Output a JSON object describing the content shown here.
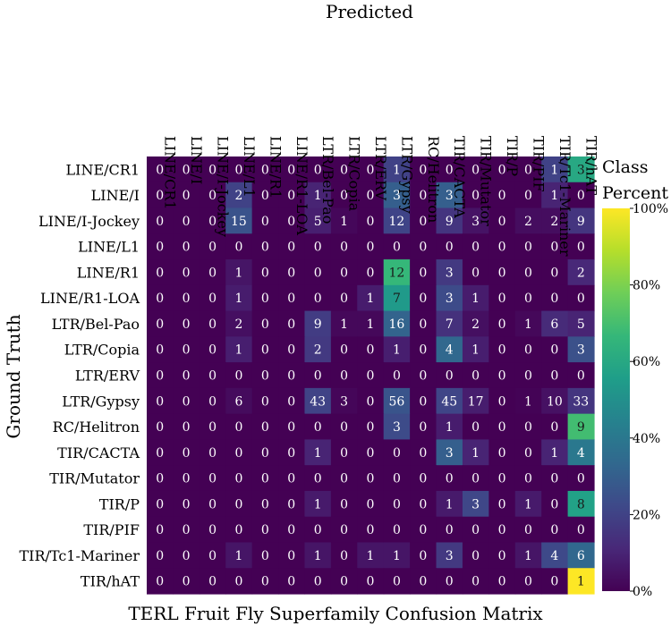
{
  "chart_data": {
    "type": "heatmap",
    "title": "TERL Fruit Fly Superfamily Confusion Matrix",
    "xlabel": "Predicted",
    "ylabel": "Ground Truth",
    "colorbar": {
      "label_line1": "Class",
      "label_line2": "Percent",
      "ticks": [
        "0%",
        "20%",
        "40%",
        "60%",
        "80%",
        "100%"
      ],
      "colormap": "viridis",
      "range": [
        0,
        100
      ]
    },
    "columns": [
      "LINE/CR1",
      "LINE/I",
      "LINE/I-Jockey",
      "LINE/L1",
      "LINE/R1",
      "LINE/R1-LOA",
      "LTR/Bel-Pao",
      "LTR/Copia",
      "LTR/ERV",
      "LTR/Gypsy",
      "RC/Helitron",
      "TIR/CACTA",
      "TIR/Mutator",
      "TIR/P",
      "TIR/PIF",
      "TIR/Tc1-Mariner",
      "TIR/hAT"
    ],
    "rows": [
      "LINE/CR1",
      "LINE/I",
      "LINE/I-Jockey",
      "LINE/L1",
      "LINE/R1",
      "LINE/R1-LOA",
      "LTR/Bel-Pao",
      "LTR/Copia",
      "LTR/ERV",
      "LTR/Gypsy",
      "RC/Helitron",
      "TIR/CACTA",
      "TIR/Mutator",
      "TIR/P",
      "TIR/PIF",
      "TIR/Tc1-Mariner",
      "TIR/hAT"
    ],
    "counts": [
      [
        0,
        0,
        0,
        0,
        0,
        0,
        0,
        0,
        0,
        1,
        0,
        0,
        0,
        0,
        0,
        1,
        3
      ],
      [
        0,
        0,
        0,
        2,
        0,
        0,
        1,
        0,
        0,
        3,
        0,
        3,
        0,
        0,
        0,
        1,
        0
      ],
      [
        0,
        0,
        0,
        15,
        0,
        0,
        5,
        1,
        0,
        12,
        0,
        9,
        3,
        0,
        2,
        2,
        9
      ],
      [
        0,
        0,
        0,
        0,
        0,
        0,
        0,
        0,
        0,
        0,
        0,
        0,
        0,
        0,
        0,
        0,
        0
      ],
      [
        0,
        0,
        0,
        1,
        0,
        0,
        0,
        0,
        0,
        12,
        0,
        3,
        0,
        0,
        0,
        0,
        2
      ],
      [
        0,
        0,
        0,
        1,
        0,
        0,
        0,
        0,
        1,
        7,
        0,
        3,
        1,
        0,
        0,
        0,
        0
      ],
      [
        0,
        0,
        0,
        2,
        0,
        0,
        9,
        1,
        1,
        16,
        0,
        7,
        2,
        0,
        1,
        6,
        5
      ],
      [
        0,
        0,
        0,
        1,
        0,
        0,
        2,
        0,
        0,
        1,
        0,
        4,
        1,
        0,
        0,
        0,
        3
      ],
      [
        0,
        0,
        0,
        0,
        0,
        0,
        0,
        0,
        0,
        0,
        0,
        0,
        0,
        0,
        0,
        0,
        0
      ],
      [
        0,
        0,
        0,
        6,
        0,
        0,
        43,
        3,
        0,
        56,
        0,
        45,
        17,
        0,
        1,
        10,
        33
      ],
      [
        0,
        0,
        0,
        0,
        0,
        0,
        0,
        0,
        0,
        3,
        0,
        1,
        0,
        0,
        0,
        0,
        9
      ],
      [
        0,
        0,
        0,
        0,
        0,
        0,
        1,
        0,
        0,
        0,
        0,
        3,
        1,
        0,
        0,
        1,
        4
      ],
      [
        0,
        0,
        0,
        0,
        0,
        0,
        0,
        0,
        0,
        0,
        0,
        0,
        0,
        0,
        0,
        0,
        0
      ],
      [
        0,
        0,
        0,
        0,
        0,
        0,
        1,
        0,
        0,
        0,
        0,
        1,
        3,
        0,
        1,
        0,
        8
      ],
      [
        0,
        0,
        0,
        0,
        0,
        0,
        0,
        0,
        0,
        0,
        0,
        0,
        0,
        0,
        0,
        0,
        0
      ],
      [
        0,
        0,
        0,
        1,
        0,
        0,
        1,
        0,
        1,
        1,
        0,
        3,
        0,
        0,
        1,
        4,
        6
      ],
      [
        0,
        0,
        0,
        0,
        0,
        0,
        0,
        0,
        0,
        0,
        0,
        0,
        0,
        0,
        0,
        0,
        1
      ]
    ]
  }
}
